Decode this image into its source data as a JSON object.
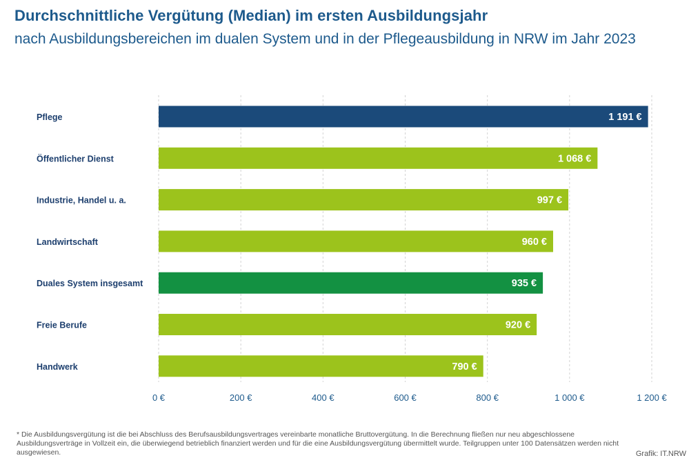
{
  "header": {
    "title": "Durchschnittliche Vergütung (Median) im ersten Ausbildungsjahr",
    "subtitle": "nach Ausbildungsbereichen im dualen System und in der Pflegeausbildung in NRW im Jahr 2023"
  },
  "chart_data": {
    "type": "bar",
    "orientation": "horizontal",
    "categories": [
      "Pflege",
      "Öffentlicher Dienst",
      "Industrie, Handel u. a.",
      "Landwirtschaft",
      "Duales System insgesamt",
      "Freie Berufe",
      "Handwerk"
    ],
    "values": [
      1191,
      1068,
      997,
      960,
      935,
      920,
      790
    ],
    "value_labels": [
      "1 191 €",
      "1 068 €",
      "997 €",
      "960 €",
      "935 €",
      "920 €",
      "790 €"
    ],
    "bar_colors": [
      "#1b4a7a",
      "#9cc31c",
      "#9cc31c",
      "#9cc31c",
      "#139142",
      "#9cc31c",
      "#9cc31c"
    ],
    "xlim": [
      0,
      1200
    ],
    "xticks": [
      0,
      200,
      400,
      600,
      800,
      1000,
      1200
    ],
    "xtick_labels": [
      "0 €",
      "200 €",
      "400 €",
      "600 €",
      "800 €",
      "1 000 €",
      "1 200 €"
    ],
    "grid": "vertical dashed",
    "colors": {
      "axis_text": "#1d5a8c",
      "category_text": "#1d3f6e",
      "grid": "#d2d2d2",
      "value_text": "#ffffff"
    }
  },
  "footer": {
    "footnote": "* Die Ausbildungsvergütung ist die bei Abschluss des Berufsausbildungsvertrages vereinbarte monatliche Bruttovergütung. In die Berechnung fließen nur neu abgeschlossene Ausbildungsverträge in Vollzeit ein, die überwiegend betrieblich finanziert werden und für die eine Ausbildungsvergütung übermittelt wurde. Teilgruppen unter 100 Datensätzen werden nicht ausgewiesen.",
    "source": "Grafik: IT.NRW"
  }
}
